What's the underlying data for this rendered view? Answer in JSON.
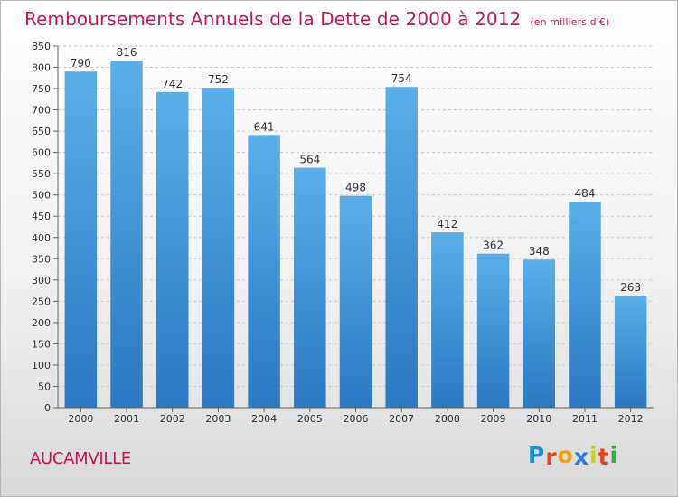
{
  "chart_data": {
    "type": "bar",
    "title": "Remboursements Annuels de la Dette de 2000 à 2012",
    "subtitle": "(en milliers d'€)",
    "categories": [
      "2000",
      "2001",
      "2002",
      "2003",
      "2004",
      "2005",
      "2006",
      "2007",
      "2008",
      "2009",
      "2010",
      "2011",
      "2012"
    ],
    "values": [
      790,
      816,
      742,
      752,
      641,
      564,
      498,
      754,
      412,
      362,
      348,
      484,
      263
    ],
    "ylim": [
      0,
      850
    ],
    "ytick_step": 50,
    "grid": true,
    "bar_color": "#3f95d9"
  },
  "commune": "AUCAMVILLE",
  "logo": {
    "letters": [
      "P",
      "r",
      "o",
      "x",
      "i",
      "t",
      "i"
    ],
    "colors": [
      "#1f8fd0",
      "#e8421a",
      "#f2a20e",
      "#2a7bd4",
      "#c9d11a",
      "#e8421a",
      "#2fae44"
    ]
  }
}
